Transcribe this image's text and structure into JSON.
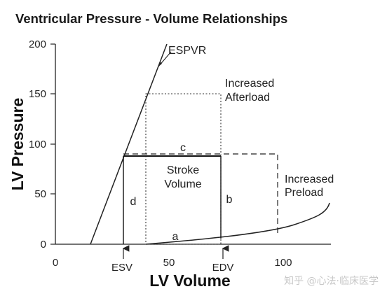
{
  "title": "Ventricular Pressure - Volume Relationships",
  "y_axis": {
    "title": "LV Pressure",
    "ticks": [
      "0",
      "50",
      "100",
      "150",
      "200"
    ]
  },
  "x_axis": {
    "title": "LV Volume",
    "ticks": [
      "0",
      "50",
      "100"
    ]
  },
  "labels": {
    "espvr": "ESPVR",
    "increased_afterload_line1": "Increased",
    "increased_afterload_line2": "Afterload",
    "increased_preload_line1": "Increased",
    "increased_preload_line2": "Preload",
    "stroke_volume_line1": "Stroke",
    "stroke_volume_line2": "Volume",
    "a": "a",
    "b": "b",
    "c": "c",
    "d": "d",
    "esv": "ESV",
    "edv": "EDV"
  },
  "watermark": "知乎 @心法·临床医学"
}
